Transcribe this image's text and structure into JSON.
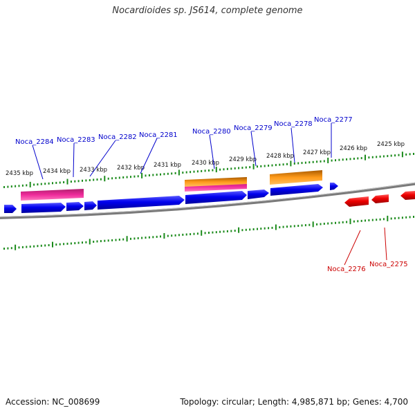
{
  "title": "Nocardioides sp. JS614, complete genome",
  "accession": "Accession: NC_008699",
  "topology": "Topology: circular; Length: 4,985,871 bp; Genes: 4,700",
  "colors": {
    "forward_gene": "#0000ee",
    "reverse_gene": "#ee0000",
    "pink_feature": "#ee2a9a",
    "orange_feature": "#ff9a1a",
    "backbone": "#7a7a7a",
    "tick": "#1a8a1a",
    "forward_label": "#0000cc",
    "reverse_label": "#cc0000"
  },
  "kbp_ticks": [
    "2435 kbp",
    "2434 kbp",
    "2433 kbp",
    "2432 kbp",
    "2431 kbp",
    "2430 kbp",
    "2429 kbp",
    "2428 kbp",
    "2427 kbp",
    "2426 kbp",
    "2425 kbp"
  ],
  "forward_labels": [
    "Noca_2284",
    "Noca_2283",
    "Noca_2282",
    "Noca_2281",
    "Noca_2280",
    "Noca_2279",
    "Noca_2278",
    "Noca_2277"
  ],
  "reverse_labels": [
    "Noca_2276",
    "Noca_2275"
  ]
}
